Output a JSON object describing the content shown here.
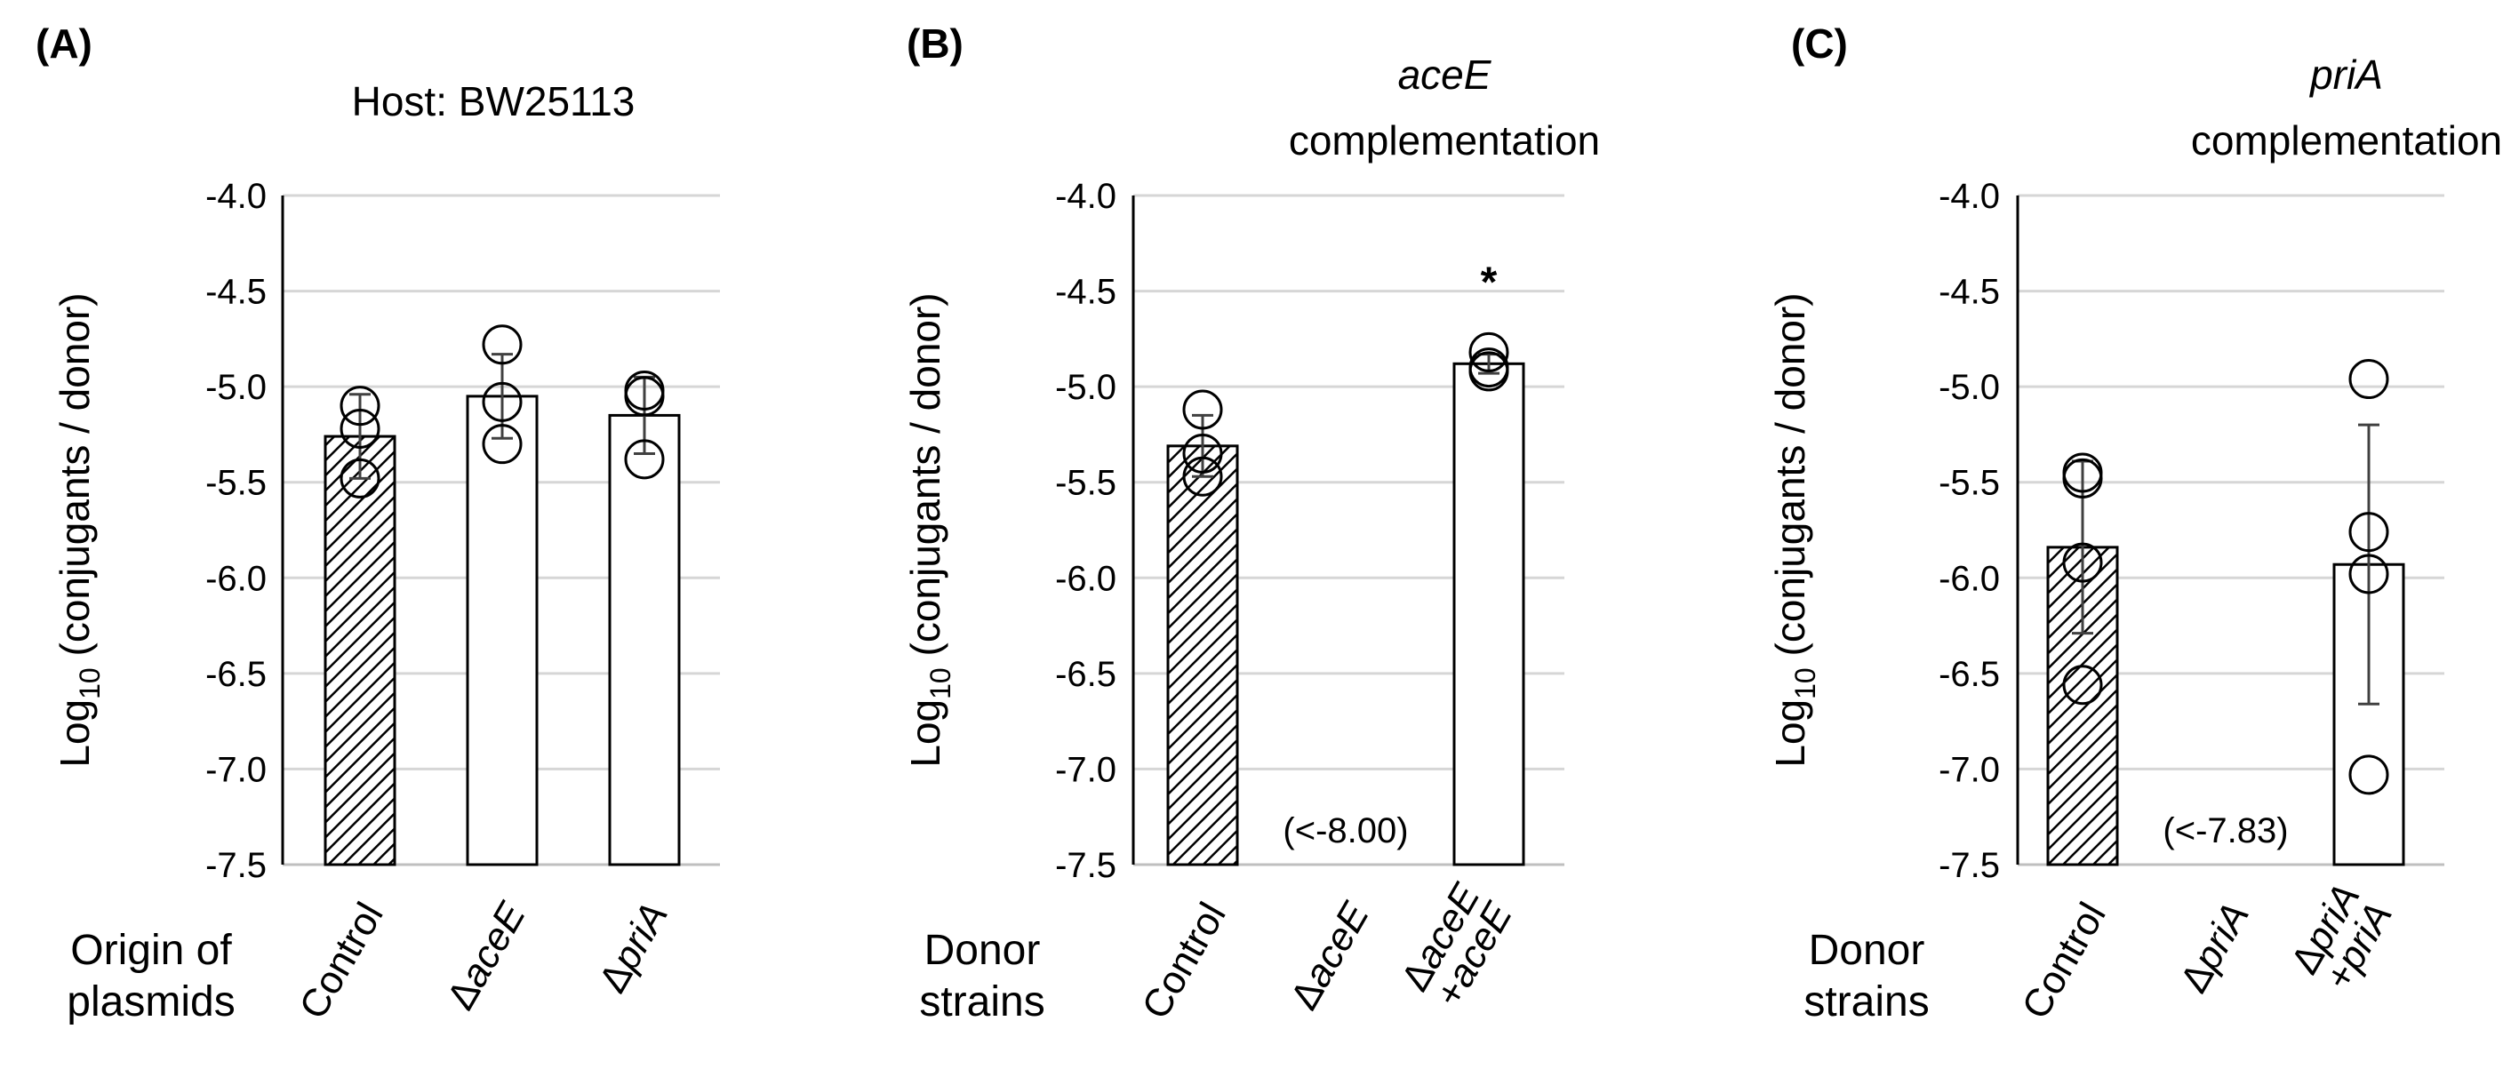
{
  "chart_data": [
    {
      "type": "bar",
      "panel": "(A)",
      "title_lines": [
        {
          "text": "Host: BW25113",
          "italic": false
        }
      ],
      "ylabel_prefix": "Log",
      "ylabel_sub": "10",
      "ylabel_suffix": " (conjugants / donor)",
      "ylim": [
        -7.5,
        -4.0
      ],
      "yticks": [
        -4.0,
        -4.5,
        -5.0,
        -5.5,
        -6.0,
        -6.5,
        -7.0,
        -7.5
      ],
      "ytick_labels": [
        "-4.0",
        "-4.5",
        "-5.0",
        "-5.5",
        "-6.0",
        "-6.5",
        "-7.0",
        "-7.5"
      ],
      "grid": true,
      "xlabel_lines": [
        "Origin of",
        "plasmids"
      ],
      "categories": [
        {
          "lines": [
            "Control"
          ],
          "italic_parts": [
            [
              false
            ]
          ],
          "prefix": [
            ""
          ],
          "value": -5.26,
          "error": 0.22,
          "hatched": true,
          "points": [
            -5.1,
            -5.22,
            -5.48
          ],
          "note": null,
          "sig": null
        },
        {
          "lines": [
            "aceE"
          ],
          "prefix": [
            "Δ"
          ],
          "value": -5.05,
          "error": 0.22,
          "hatched": false,
          "points": [
            -4.78,
            -5.08,
            -5.3
          ],
          "note": null,
          "sig": null
        },
        {
          "lines": [
            "priA"
          ],
          "prefix": [
            "Δ"
          ],
          "value": -5.15,
          "error": 0.2,
          "hatched": false,
          "points": [
            -5.02,
            -5.05,
            -5.38
          ],
          "note": null,
          "sig": null
        }
      ]
    },
    {
      "type": "bar",
      "panel": "(B)",
      "title_lines": [
        {
          "text": "aceE",
          "italic": true
        },
        {
          "text": "complementation",
          "italic": false
        }
      ],
      "ylabel_prefix": "Log",
      "ylabel_sub": "10",
      "ylabel_suffix": " (conjugants / donor)",
      "ylim": [
        -7.5,
        -4.0
      ],
      "yticks": [
        -4.0,
        -4.5,
        -5.0,
        -5.5,
        -6.0,
        -6.5,
        -7.0,
        -7.5
      ],
      "ytick_labels": [
        "-4.0",
        "-4.5",
        "-5.0",
        "-5.5",
        "-6.0",
        "-6.5",
        "-7.0",
        "-7.5"
      ],
      "grid": true,
      "xlabel_lines": [
        "Donor",
        "strains"
      ],
      "categories": [
        {
          "lines": [
            "Control"
          ],
          "prefix": [
            ""
          ],
          "value": -5.31,
          "error": 0.16,
          "hatched": true,
          "points": [
            -5.12,
            -5.35,
            -5.47
          ],
          "note": null,
          "sig": null
        },
        {
          "lines": [
            "aceE"
          ],
          "prefix": [
            "Δ"
          ],
          "value": null,
          "error": null,
          "hatched": false,
          "points": [],
          "note": "(<-8.00)",
          "sig": null
        },
        {
          "lines": [
            "aceE",
            "+aceE"
          ],
          "prefix": [
            "Δ",
            ""
          ],
          "value": -4.88,
          "error": 0.05,
          "hatched": false,
          "points": [
            -4.82,
            -4.9,
            -4.92
          ],
          "note": null,
          "sig": "*"
        }
      ]
    },
    {
      "type": "bar",
      "panel": "(C)",
      "title_lines": [
        {
          "text": "priA",
          "italic": true
        },
        {
          "text": "complementation",
          "italic": false
        }
      ],
      "ylabel_prefix": "Log",
      "ylabel_sub": "10",
      "ylabel_suffix": " (conjugants / donor)",
      "ylim": [
        -7.5,
        -4.0
      ],
      "yticks": [
        -4.0,
        -4.5,
        -5.0,
        -5.5,
        -6.0,
        -6.5,
        -7.0,
        -7.5
      ],
      "ytick_labels": [
        "-4.0",
        "-4.5",
        "-5.0",
        "-5.5",
        "-6.0",
        "-6.5",
        "-7.0",
        "-7.5"
      ],
      "grid": true,
      "xlabel_lines": [
        "Donor",
        "strains"
      ],
      "categories": [
        {
          "lines": [
            "Control"
          ],
          "prefix": [
            ""
          ],
          "value": -5.84,
          "error": 0.45,
          "hatched": true,
          "points": [
            -5.45,
            -5.48,
            -5.92,
            -6.56
          ],
          "note": null,
          "sig": null
        },
        {
          "lines": [
            "priA"
          ],
          "prefix": [
            "Δ"
          ],
          "value": null,
          "error": null,
          "hatched": false,
          "points": [],
          "note": "(<-7.83)",
          "sig": null
        },
        {
          "lines": [
            "priA",
            "+priA"
          ],
          "prefix": [
            "Δ",
            ""
          ],
          "value": -5.93,
          "error": 0.73,
          "hatched": false,
          "points": [
            -4.96,
            -5.76,
            -5.98,
            -7.03
          ],
          "note": null,
          "sig": null
        }
      ]
    }
  ]
}
